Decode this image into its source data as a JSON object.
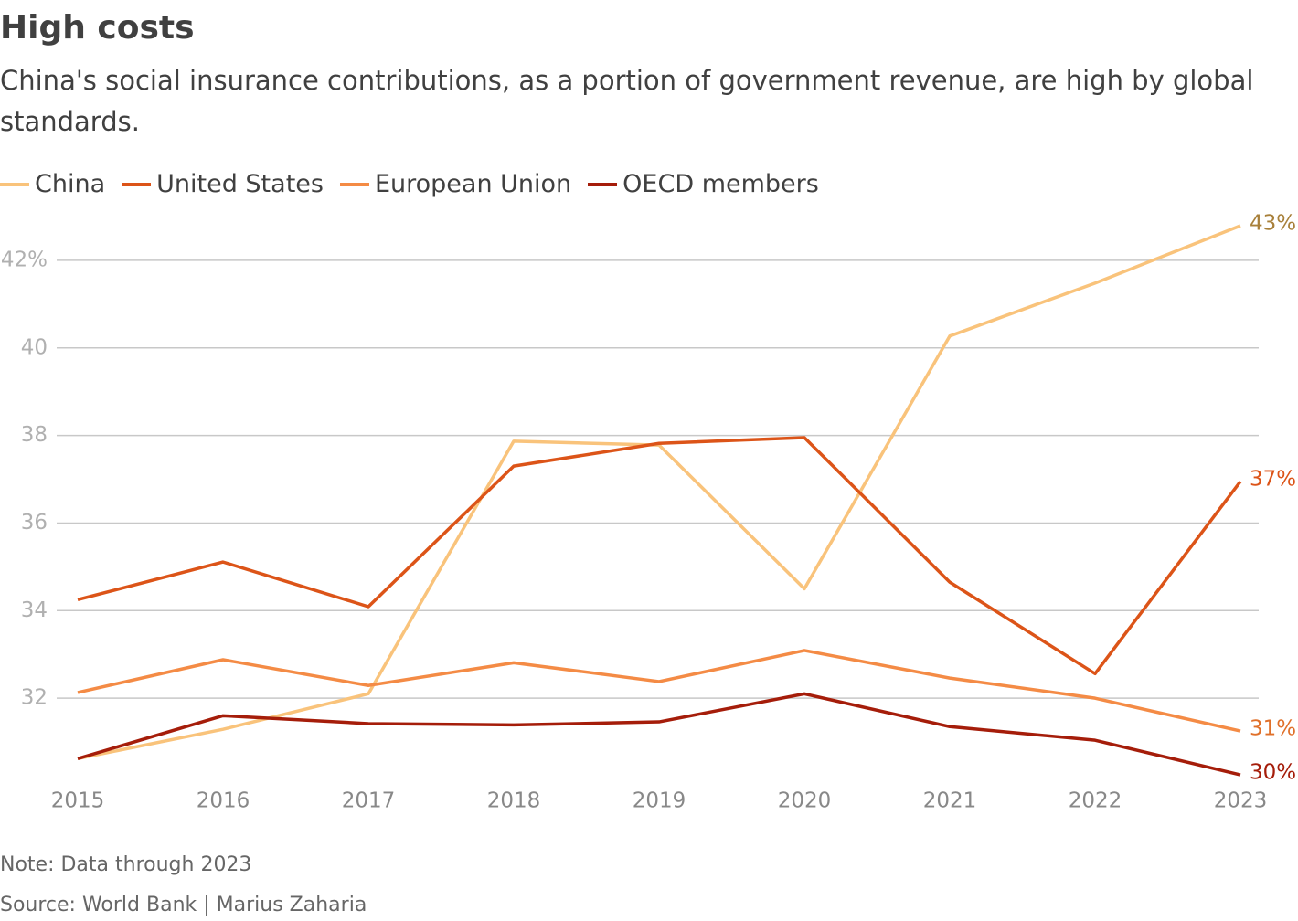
{
  "chart_data": {
    "type": "line",
    "title": "High costs",
    "subtitle": "China's social insurance contributions, as a portion of government revenue, are high by global standards.",
    "note": "Note: Data through 2023",
    "source": "Source: World Bank | Marius Zaharia",
    "categories": [
      "2015",
      "2016",
      "2017",
      "2018",
      "2019",
      "2020",
      "2021",
      "2022",
      "2023"
    ],
    "series": [
      {
        "name": "China",
        "color": "#f9c37b",
        "label_color": "#a8803a",
        "values": [
          30.62,
          31.29,
          32.1,
          37.87,
          37.78,
          34.5,
          40.27,
          41.48,
          42.79
        ],
        "value_labels": [
          null,
          null,
          null,
          null,
          null,
          null,
          null,
          null,
          "43%"
        ]
      },
      {
        "name": "United States",
        "color": "#dc5418",
        "label_color": "#dc5418",
        "values": [
          34.25,
          35.11,
          34.09,
          37.3,
          37.82,
          37.95,
          34.65,
          32.56,
          36.95
        ],
        "value_labels": [
          null,
          null,
          null,
          null,
          null,
          null,
          null,
          null,
          "37%"
        ]
      },
      {
        "name": "European Union",
        "color": "#f48b45",
        "label_color": "#e0702a",
        "values": [
          32.13,
          32.88,
          32.29,
          32.81,
          32.38,
          33.09,
          32.46,
          32.0,
          31.25
        ],
        "value_labels": [
          null,
          null,
          null,
          null,
          null,
          null,
          null,
          null,
          "31%"
        ]
      },
      {
        "name": "OECD members",
        "color": "#a51d0a",
        "label_color": "#a51d0a",
        "values": [
          30.62,
          31.6,
          31.42,
          31.39,
          31.46,
          32.1,
          31.35,
          31.04,
          30.25
        ],
        "value_labels": [
          null,
          null,
          null,
          null,
          null,
          null,
          null,
          null,
          "30%"
        ]
      }
    ],
    "ylim": [
      30,
      43
    ],
    "yticks": [
      32,
      34,
      36,
      38,
      40,
      {
        "value": 42,
        "label": "42%"
      }
    ],
    "grid": true
  }
}
